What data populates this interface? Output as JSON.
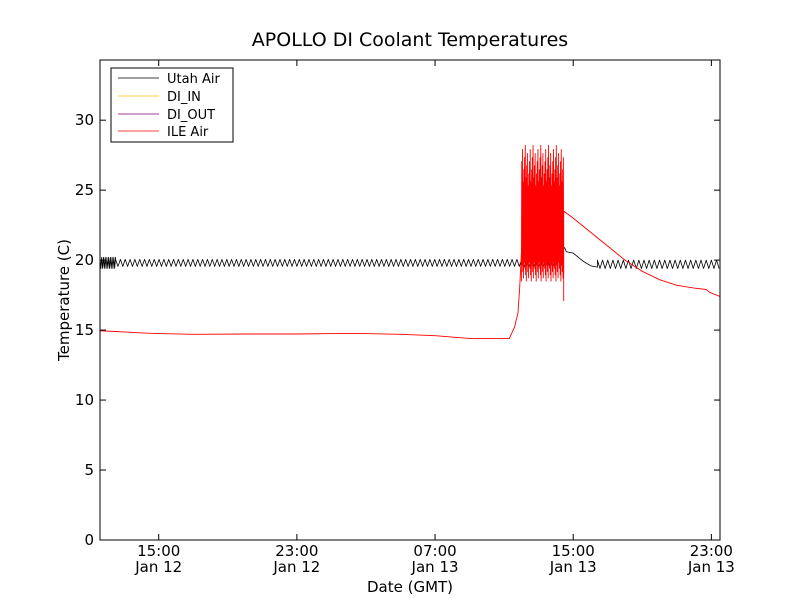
{
  "chart_data": {
    "type": "line",
    "title": "APOLLO DI Coolant Temperatures",
    "xlabel": "Date (GMT)",
    "ylabel": "Temperature (C)",
    "x_unit": "hours since Jan 12 00:00 GMT",
    "xlim": [
      11.6,
      47.5
    ],
    "ylim": [
      0,
      34.3
    ],
    "grid": false,
    "legend_position": "top-left",
    "x_ticks": [
      {
        "value": 15,
        "label_time": "15:00",
        "label_date": "Jan 12"
      },
      {
        "value": 23,
        "label_time": "23:00",
        "label_date": "Jan 12"
      },
      {
        "value": 31,
        "label_time": "07:00",
        "label_date": "Jan 13"
      },
      {
        "value": 39,
        "label_time": "15:00",
        "label_date": "Jan 13"
      },
      {
        "value": 47,
        "label_time": "23:00",
        "label_date": "Jan 13"
      }
    ],
    "y_ticks": [
      {
        "value": 0,
        "label": "0"
      },
      {
        "value": 5,
        "label": "5"
      },
      {
        "value": 10,
        "label": "10"
      },
      {
        "value": 15,
        "label": "15"
      },
      {
        "value": 20,
        "label": "20"
      },
      {
        "value": 25,
        "label": "25"
      },
      {
        "value": 30,
        "label": "30"
      }
    ],
    "series": [
      {
        "name": "Utah Air",
        "color": "#000000",
        "description": "oscillates between about 19.5 and 20.1 C with a period of roughly 0.28 h",
        "segments": [
          {
            "x": [
              11.6,
              12.5
            ],
            "min": 19.4,
            "max": 20.2,
            "period": 0.1
          },
          {
            "x": [
              12.5,
              37.5
            ],
            "min": 19.55,
            "max": 20.05,
            "period": 0.28
          },
          {
            "x": [
              37.5,
              38.2
            ],
            "min": 19.6,
            "max": 20.1,
            "period": 0.24
          }
        ],
        "points": [
          [
            38.2,
            20.4
          ],
          [
            38.5,
            20.9
          ],
          [
            38.6,
            20.6
          ],
          [
            39.0,
            20.5
          ],
          [
            39.6,
            19.9
          ],
          [
            40.0,
            19.6
          ],
          [
            40.4,
            19.5
          ]
        ],
        "tail": {
          "x": [
            40.4,
            47.5
          ],
          "min": 19.4,
          "max": 20.0,
          "period": 0.3
        }
      },
      {
        "name": "DI_IN",
        "color": "#ffbf00",
        "points": []
      },
      {
        "name": "DI_OUT",
        "color": "#7f007f",
        "points": []
      },
      {
        "name": "ILE Air",
        "color": "#ff0000",
        "points": [
          [
            11.6,
            14.95
          ],
          [
            12.5,
            14.9
          ],
          [
            14.0,
            14.8
          ],
          [
            15.0,
            14.75
          ],
          [
            17.0,
            14.7
          ],
          [
            20.0,
            14.72
          ],
          [
            23.0,
            14.72
          ],
          [
            25.0,
            14.75
          ],
          [
            27.0,
            14.75
          ],
          [
            29.0,
            14.7
          ],
          [
            31.0,
            14.6
          ],
          [
            33.0,
            14.4
          ],
          [
            35.0,
            14.4
          ],
          [
            35.3,
            14.4
          ],
          [
            35.6,
            15.2
          ],
          [
            35.8,
            16.2
          ],
          [
            35.9,
            18.0
          ],
          [
            36.0,
            20.5
          ]
        ],
        "burst": {
          "x": [
            36.0,
            38.45
          ],
          "low": 18.5,
          "high": 28.2,
          "min_at_end": 17.1
        },
        "tail": [
          [
            38.45,
            23.5
          ],
          [
            39.0,
            23.0
          ],
          [
            40.0,
            22.0
          ],
          [
            41.0,
            21.0
          ],
          [
            42.0,
            20.0
          ],
          [
            43.0,
            19.2
          ],
          [
            44.0,
            18.6
          ],
          [
            45.0,
            18.2
          ],
          [
            46.0,
            18.0
          ],
          [
            46.7,
            17.9
          ],
          [
            46.9,
            17.7
          ],
          [
            47.5,
            17.4
          ]
        ]
      }
    ]
  }
}
